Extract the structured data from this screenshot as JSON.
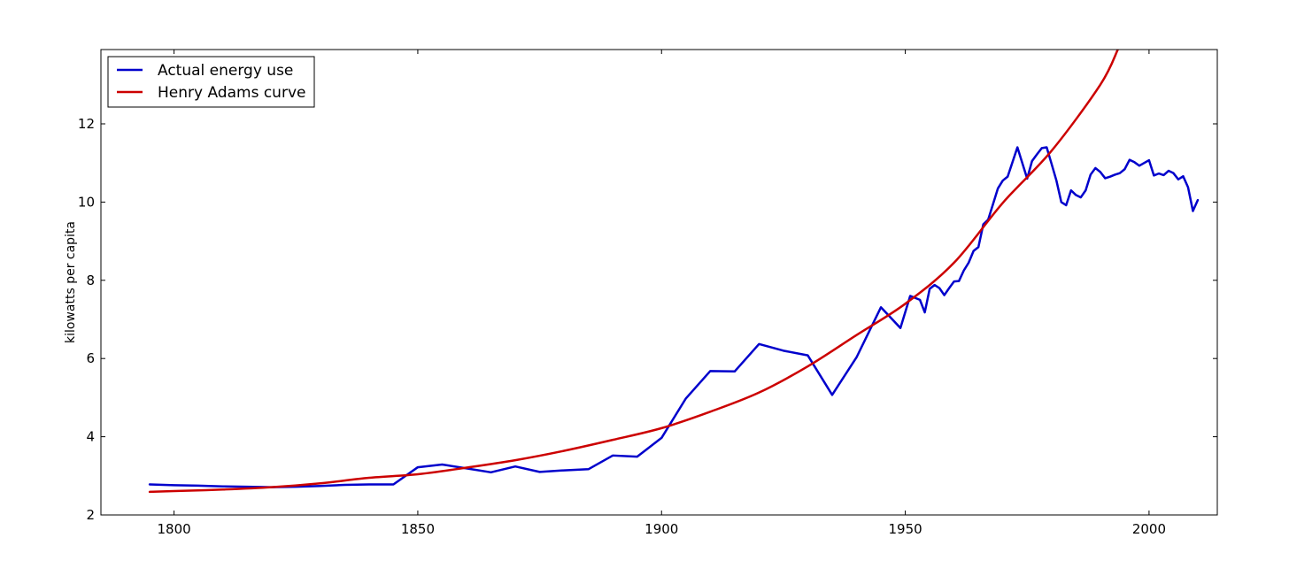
{
  "chart_data": {
    "type": "line",
    "title": "",
    "xlabel": "",
    "ylabel": "kilowatts per capita",
    "xlim": [
      1785,
      2014
    ],
    "ylim": [
      2,
      13.9
    ],
    "grid": false,
    "legend_position": "top-left",
    "x_ticks": [
      1800,
      1850,
      1900,
      1950,
      2000
    ],
    "y_ticks": [
      2,
      4,
      6,
      8,
      10,
      12
    ],
    "series": [
      {
        "name": "Actual energy use",
        "color": "#0000cc",
        "style": "polyline",
        "x": [
          1795,
          1800,
          1805,
          1810,
          1815,
          1820,
          1825,
          1830,
          1835,
          1840,
          1845,
          1850,
          1855,
          1860,
          1865,
          1870,
          1875,
          1880,
          1885,
          1890,
          1895,
          1900,
          1905,
          1910,
          1915,
          1920,
          1925,
          1930,
          1935,
          1940,
          1945,
          1949,
          1951,
          1953,
          1954,
          1955,
          1956,
          1957,
          1958,
          1959,
          1960,
          1961,
          1962,
          1963,
          1964,
          1965,
          1966,
          1967,
          1968,
          1969,
          1970,
          1971,
          1973,
          1975,
          1976,
          1977,
          1978,
          1979,
          1980,
          1981,
          1982,
          1983,
          1984,
          1985,
          1986,
          1987,
          1988,
          1989,
          1990,
          1991,
          1992,
          1993,
          1994,
          1995,
          1996,
          1997,
          1998,
          1999,
          2000,
          2001,
          2002,
          2003,
          2004,
          2005,
          2006,
          2007,
          2008,
          2009,
          2010
        ],
        "y": [
          2.78,
          2.76,
          2.75,
          2.73,
          2.72,
          2.71,
          2.72,
          2.74,
          2.77,
          2.78,
          2.78,
          3.22,
          3.29,
          3.19,
          3.09,
          3.24,
          3.1,
          3.14,
          3.17,
          3.52,
          3.49,
          3.97,
          4.98,
          5.68,
          5.67,
          6.37,
          6.2,
          6.08,
          5.07,
          6.03,
          7.31,
          6.78,
          7.6,
          7.5,
          7.18,
          7.78,
          7.88,
          7.8,
          7.62,
          7.8,
          7.97,
          7.98,
          8.25,
          8.45,
          8.75,
          8.85,
          9.43,
          9.55,
          9.95,
          10.35,
          10.55,
          10.65,
          11.4,
          10.6,
          11.05,
          11.22,
          11.38,
          11.4,
          10.98,
          10.55,
          10.0,
          9.92,
          10.3,
          10.18,
          10.12,
          10.3,
          10.7,
          10.87,
          10.77,
          10.61,
          10.65,
          10.7,
          10.74,
          10.84,
          11.08,
          11.02,
          10.93,
          11.0,
          11.07,
          10.68,
          10.73,
          10.69,
          10.8,
          10.74,
          10.58,
          10.66,
          10.38,
          9.77,
          10.05
        ]
      },
      {
        "name": "Henry Adams curve",
        "color": "#cc0000",
        "style": "smooth",
        "x": [
          1795,
          1800,
          1810,
          1820,
          1830,
          1840,
          1850,
          1860,
          1870,
          1880,
          1890,
          1900,
          1910,
          1920,
          1930,
          1940,
          1950,
          1960,
          1970,
          1980,
          1990,
          1993.6
        ],
        "y": [
          2.59,
          2.61,
          2.65,
          2.71,
          2.81,
          2.95,
          3.04,
          3.21,
          3.4,
          3.64,
          3.92,
          4.22,
          4.64,
          5.13,
          5.8,
          6.6,
          7.4,
          8.45,
          9.98,
          11.31,
          13.0,
          13.9
        ]
      }
    ]
  }
}
